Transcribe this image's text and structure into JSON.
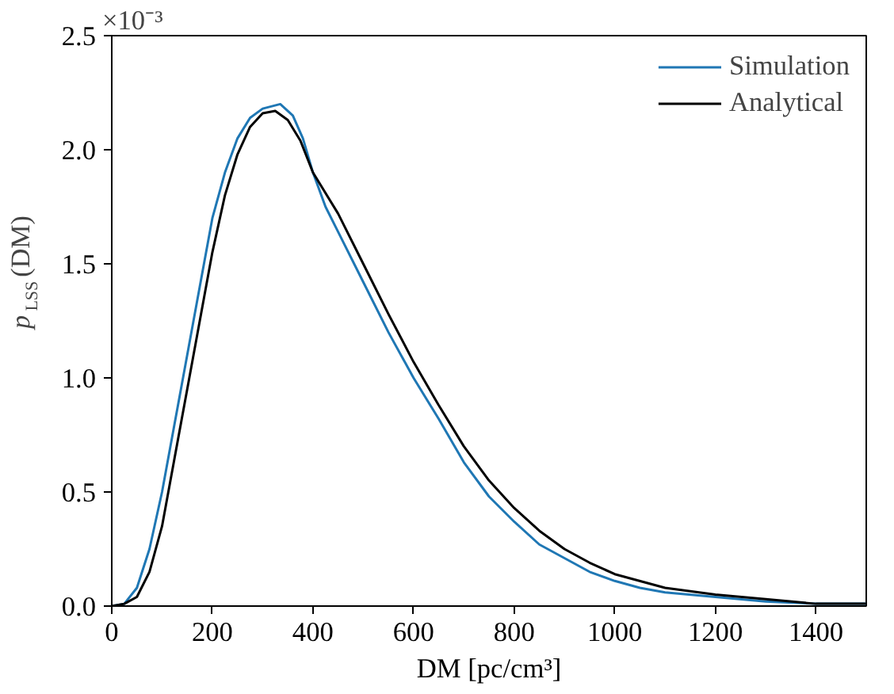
{
  "chart_data": {
    "type": "line",
    "xlabel": "DM [pc/cm³]",
    "ylabel": "p$_{LSS}$(DM)",
    "annotations": [
      "×10⁻³"
    ],
    "xlim": [
      0,
      1500
    ],
    "xticks": [
      0,
      200,
      400,
      600,
      800,
      1000,
      1200,
      1400
    ],
    "ylim": [
      0,
      2.5
    ],
    "yticks": [
      {
        "value": 0,
        "label": "0.0"
      },
      0.5,
      {
        "value": 1,
        "label": "1.0"
      },
      1.5,
      {
        "value": 2,
        "label": "2.0"
      },
      2.5
    ],
    "grid": false,
    "legend": "top right",
    "line_style": "solid",
    "marker": "none",
    "series": [
      {
        "name": "Simulation",
        "color": "#1f77b4",
        "x": [
          0,
          25,
          50,
          75,
          100,
          125,
          150,
          175,
          200,
          225,
          250,
          275,
          300,
          335,
          360,
          380,
          400,
          425,
          450,
          500,
          550,
          600,
          650,
          700,
          750,
          800,
          850,
          900,
          950,
          1000,
          1050,
          1100,
          1200,
          1300,
          1400,
          1500
        ],
        "values": [
          0,
          0.01,
          0.08,
          0.25,
          0.5,
          0.8,
          1.1,
          1.4,
          1.7,
          1.9,
          2.05,
          2.14,
          2.18,
          2.2,
          2.15,
          2.05,
          1.9,
          1.75,
          1.64,
          1.42,
          1.2,
          1.0,
          0.82,
          0.63,
          0.48,
          0.37,
          0.27,
          0.21,
          0.15,
          0.11,
          0.08,
          0.06,
          0.04,
          0.02,
          0.01,
          0.01
        ]
      },
      {
        "name": "Analytical",
        "color": "#000000",
        "x": [
          0,
          25,
          50,
          75,
          100,
          125,
          150,
          175,
          200,
          225,
          250,
          275,
          300,
          325,
          350,
          375,
          400,
          450,
          500,
          550,
          600,
          650,
          700,
          750,
          800,
          850,
          900,
          950,
          1000,
          1100,
          1200,
          1300,
          1400,
          1500
        ],
        "values": [
          0,
          0.01,
          0.04,
          0.15,
          0.35,
          0.65,
          0.95,
          1.25,
          1.55,
          1.8,
          1.98,
          2.1,
          2.16,
          2.17,
          2.13,
          2.04,
          1.9,
          1.72,
          1.5,
          1.28,
          1.07,
          0.88,
          0.7,
          0.55,
          0.43,
          0.33,
          0.25,
          0.19,
          0.14,
          0.08,
          0.05,
          0.03,
          0.01,
          0.01
        ]
      }
    ]
  }
}
